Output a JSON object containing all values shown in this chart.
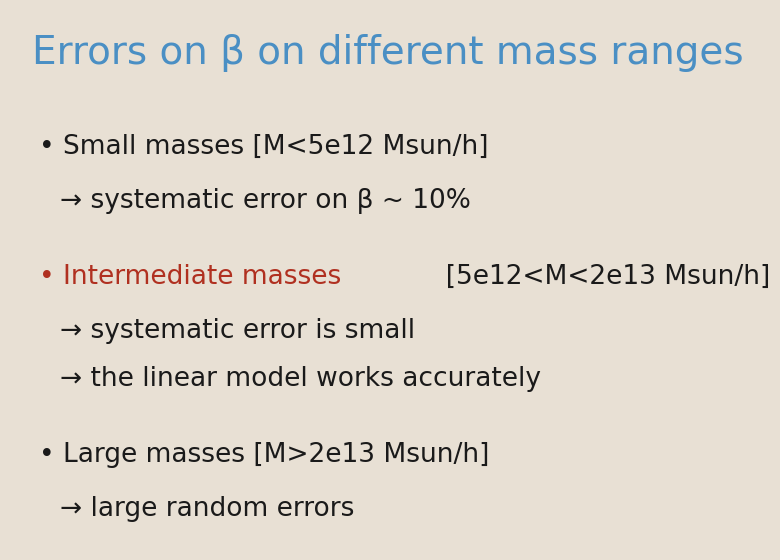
{
  "title": "Errors on β on different mass ranges",
  "title_color": "#4A8FC4",
  "background_color": "#E8E0D4",
  "title_fontsize": 28,
  "body_fontsize": 19,
  "dark_color": "#1a1a1a",
  "red_color": "#B03020",
  "bullet1_line1": "• Small masses [M<5e12 Msun/h]",
  "bullet1_line2": "→ systematic error on β ~ 10%",
  "bullet2_red": "• Intermediate masses",
  "bullet2_black": "  [5e12<M<2e13 Msun/h]",
  "bullet2_line2": "→ systematic error is small",
  "bullet2_line3": "→ the linear model works accurately",
  "bullet3_line1": "• Large masses [M>2e13 Msun/h]",
  "bullet3_line2": "→ large random errors"
}
